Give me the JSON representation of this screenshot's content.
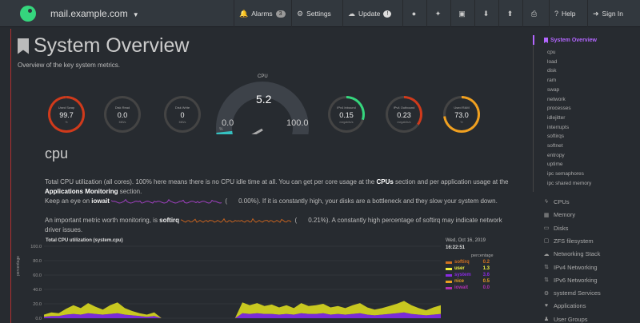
{
  "topbar": {
    "host": "mail.example.com",
    "buttons": [
      {
        "label": "Alarms",
        "icon": "bell-icon",
        "badge": "3"
      },
      {
        "label": "Settings",
        "icon": "gear-icon"
      },
      {
        "label": "Update",
        "icon": "cloud-download-icon",
        "badge": "!"
      },
      {
        "label": "",
        "icon": "github-icon"
      },
      {
        "label": "",
        "icon": "twitter-icon"
      },
      {
        "label": "",
        "icon": "facebook-icon"
      },
      {
        "label": "",
        "icon": "download-icon"
      },
      {
        "label": "",
        "icon": "upload-icon"
      },
      {
        "label": "",
        "icon": "print-icon"
      },
      {
        "label": "Help",
        "icon": "question-icon"
      },
      {
        "label": "Sign In",
        "icon": "sign-in-icon"
      }
    ]
  },
  "header": {
    "title": "System Overview",
    "subtitle": "Overview of the key system metrics."
  },
  "gauges": [
    {
      "label": "Used Swap",
      "value": "99.7",
      "unit": "%",
      "fraction": 0.997,
      "color": "#d03a1b"
    },
    {
      "label": "Disk Read",
      "value": "0.0",
      "unit": "MiB/s",
      "fraction": 0.0,
      "color": "#35d67d"
    },
    {
      "label": "Disk Write",
      "value": "0",
      "unit": "MiB/s",
      "fraction": 0.0,
      "color": "#d03a1b"
    },
    {
      "label": "IPv4 Inbound",
      "value": "0.15",
      "unit": "megabits/s",
      "fraction": 0.3,
      "color": "#35d67d"
    },
    {
      "label": "IPv4 Outbound",
      "value": "0.23",
      "unit": "megabits/s",
      "fraction": 0.35,
      "color": "#d03a1b"
    },
    {
      "label": "Used RAM",
      "value": "73.0",
      "unit": "%",
      "fraction": 0.73,
      "color": "#f0a020"
    }
  ],
  "cpu_gauge": {
    "title": "CPU",
    "value": "5.2",
    "min": "0.0",
    "max": "100.0",
    "unit": "%",
    "fraction": 0.052
  },
  "section": {
    "title": "cpu",
    "p1": "Total CPU utilization (all cores). 100% here means there is no CPU idle time at all. You can get per core usage at the",
    "p1_cpus": "CPUs",
    "p1b": "section and per application usage at the",
    "p1_apps": "Applications Monitoring",
    "p1c": "section.",
    "p2a": "Keep an eye on",
    "p2_iowait": "iowait",
    "p2_val": "0.00%",
    "p2b": "). If it is constantly high, your disks are a bottleneck and they slow your system down.",
    "p3a": "An important metric worth monitoring, is",
    "p3_softirq": "softirq",
    "p3_val": "0.21%",
    "p3b": "). A constantly high percentage of softirq may indicate network driver issues."
  },
  "chart_data": {
    "type": "area",
    "title": "Total CPU utilization (system.cpu)",
    "ylabel": "percentage",
    "ylim": [
      0,
      100
    ],
    "yticks": [
      "100.0",
      "80.0",
      "60.0",
      "40.0",
      "20.0",
      "0.0"
    ],
    "legend": {
      "date": "Wed, Oct 16, 2019",
      "time": "16:22:51",
      "units": "percentage",
      "items": [
        {
          "name": "softirq",
          "value": "0.2",
          "color": "#d07020"
        },
        {
          "name": "user",
          "value": "1.3",
          "color": "#f0f040"
        },
        {
          "name": "system",
          "value": "3.6",
          "color": "#8a2be2"
        },
        {
          "name": "nice",
          "value": "0.5",
          "color": "#e8a020"
        },
        {
          "name": "iowait",
          "value": "0.0",
          "color": "#b030b0"
        }
      ]
    },
    "series_user": [
      3,
      5,
      4,
      8,
      12,
      9,
      14,
      10,
      7,
      12,
      15,
      9,
      6,
      4,
      3,
      5,
      0,
      0,
      0,
      0,
      0,
      0,
      0,
      0,
      0,
      0,
      0,
      15,
      12,
      14,
      11,
      13,
      10,
      12,
      9,
      14,
      11,
      12,
      13,
      10,
      11,
      9,
      12,
      14,
      10,
      8,
      9,
      11,
      13,
      16,
      12,
      9,
      7,
      10,
      12
    ],
    "series_system": [
      2,
      3,
      3,
      5,
      6,
      5,
      7,
      6,
      5,
      6,
      7,
      5,
      4,
      3,
      2,
      3,
      0,
      0,
      0,
      0,
      0,
      0,
      0,
      0,
      0,
      0,
      0,
      7,
      6,
      7,
      6,
      6,
      5,
      6,
      5,
      7,
      6,
      6,
      7,
      5,
      6,
      5,
      6,
      7,
      5,
      4,
      5,
      6,
      7,
      8,
      6,
      5,
      4,
      5,
      6
    ]
  },
  "sidebar": {
    "active": "System Overview",
    "sub_items": [
      "cpu",
      "load",
      "disk",
      "ram",
      "swap",
      "network",
      "processes",
      "idlejitter",
      "interrupts",
      "softirqs",
      "softnet",
      "entropy",
      "uptime",
      "ipc semaphores",
      "ipc shared memory"
    ],
    "sections": [
      {
        "label": "CPUs",
        "icon": "bolt-icon"
      },
      {
        "label": "Memory",
        "icon": "memory-icon"
      },
      {
        "label": "Disks",
        "icon": "hdd-icon"
      },
      {
        "label": "ZFS filesystem",
        "icon": "folder-icon"
      },
      {
        "label": "Networking Stack",
        "icon": "cloud-icon"
      },
      {
        "label": "IPv4 Networking",
        "icon": "network-icon"
      },
      {
        "label": "IPv6 Networking",
        "icon": "network-icon"
      },
      {
        "label": "systemd Services",
        "icon": "cogs-icon"
      },
      {
        "label": "Applications",
        "icon": "heartbeat-icon"
      },
      {
        "label": "User Groups",
        "icon": "users-icon"
      }
    ]
  }
}
